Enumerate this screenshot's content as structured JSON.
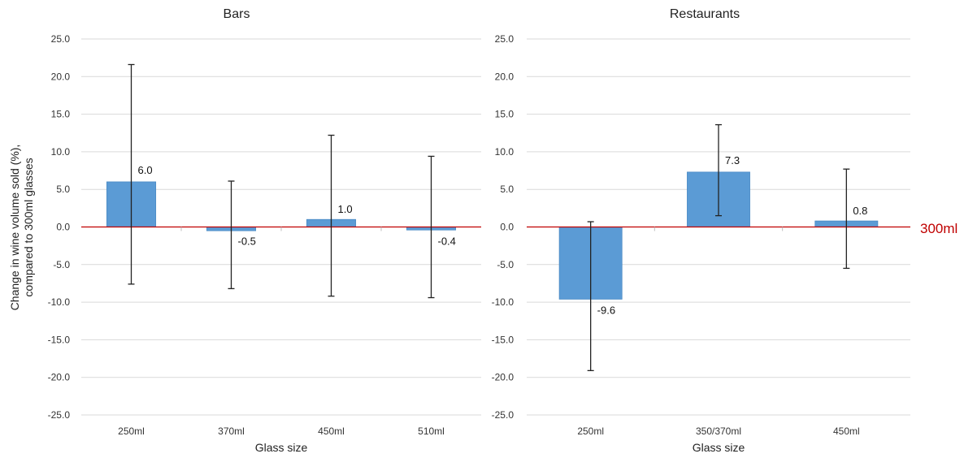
{
  "chart_data": [
    {
      "type": "bar",
      "title": "Bars",
      "xlabel": "Glass size",
      "ylabel": "Change in wine volume sold (%), compared to 300ml  glasses",
      "ylim": [
        -25,
        25
      ],
      "yticks": [
        "25.0",
        "20.0",
        "15.0",
        "10.0",
        "5.0",
        "0.0",
        "-5.0",
        "-10.0",
        "-15.0",
        "-20.0",
        "-25.0"
      ],
      "categories": [
        "250ml",
        "370ml",
        "450ml",
        "510ml"
      ],
      "values": [
        6.0,
        -0.5,
        1.0,
        -0.4
      ],
      "value_labels": [
        "6.0",
        "-0.5",
        "1.0",
        "-0.4"
      ],
      "error_low": [
        -7.6,
        -8.2,
        -9.2,
        -9.4
      ],
      "error_high": [
        21.6,
        6.1,
        12.2,
        9.4
      ],
      "bar_color": "#5b9bd5",
      "grid": true
    },
    {
      "type": "bar",
      "title": "Restaurants",
      "xlabel": "Glass size",
      "ylabel": "",
      "ylim": [
        -25,
        25
      ],
      "yticks": [
        "25.0",
        "20.0",
        "15.0",
        "10.0",
        "5.0",
        "0.0",
        "-5.0",
        "-10.0",
        "-15.0",
        "-20.0",
        "-25.0"
      ],
      "categories": [
        "250ml",
        "350/370ml",
        "450ml"
      ],
      "values": [
        -9.6,
        7.3,
        0.8
      ],
      "value_labels": [
        "-9.6",
        "7.3",
        "0.8"
      ],
      "error_low": [
        -19.1,
        1.5,
        -5.5
      ],
      "error_high": [
        0.7,
        13.6,
        7.7
      ],
      "bar_color": "#5b9bd5",
      "grid": true
    }
  ],
  "reference_line": {
    "value": 0,
    "label": "300ml",
    "color": "#c00000"
  },
  "colors": {
    "grid": "#d9d9d9",
    "error_bar": "#222222"
  }
}
